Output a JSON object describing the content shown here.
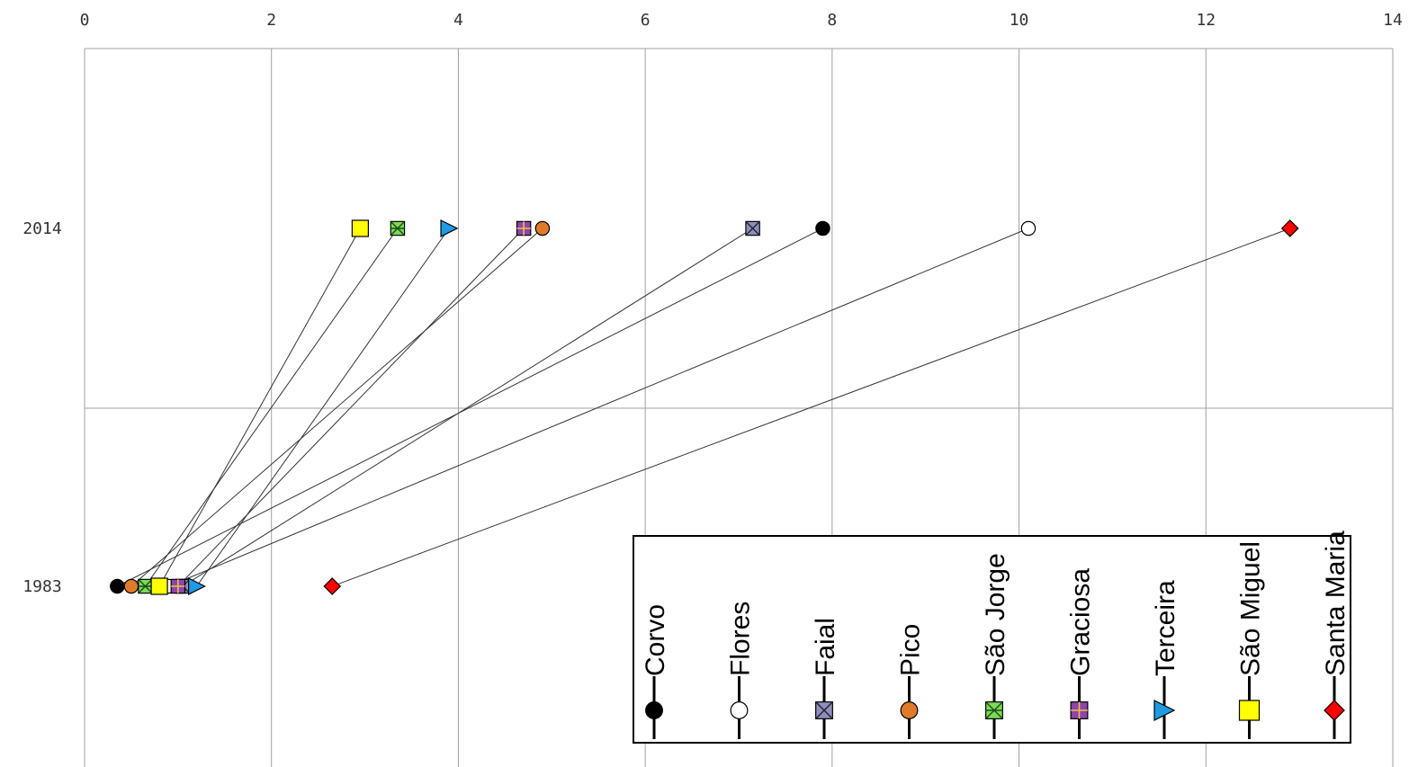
{
  "chart_data": {
    "type": "line",
    "x_ticks": [
      0,
      2,
      4,
      6,
      8,
      10,
      12,
      14
    ],
    "xlim": [
      0,
      14
    ],
    "categories": [
      "2014",
      "1983"
    ],
    "grid": true,
    "legend_placement": "bottom-right",
    "series": [
      {
        "name": "Corvo",
        "marker": "circle",
        "fill": "#000000",
        "values": {
          "1983": 0.35,
          "2014": 7.9
        }
      },
      {
        "name": "Flores",
        "marker": "circle",
        "fill": "#ffffff",
        "values": {
          "1983": 0.9,
          "2014": 10.1
        }
      },
      {
        "name": "Faial",
        "marker": "square-x",
        "fill": "#8e8ec0",
        "values": {
          "1983": 1.05,
          "2014": 7.15
        }
      },
      {
        "name": "Pico",
        "marker": "circle",
        "fill": "#e07a2a",
        "values": {
          "1983": 0.5,
          "2014": 4.9
        }
      },
      {
        "name": "São Jorge",
        "marker": "square-asterisk",
        "fill": "#7ed957",
        "values": {
          "1983": 0.65,
          "2014": 3.35
        }
      },
      {
        "name": "Graciosa",
        "marker": "square-plus",
        "fill": "#8e44ad",
        "values": {
          "1983": 1.0,
          "2014": 4.7
        }
      },
      {
        "name": "Terceira",
        "marker": "triangle",
        "fill": "#1e9be3",
        "values": {
          "1983": 1.2,
          "2014": 3.9
        }
      },
      {
        "name": "São Miguel",
        "marker": "square",
        "fill": "#ffff00",
        "values": {
          "1983": 0.8,
          "2014": 2.95
        }
      },
      {
        "name": "Santa Maria",
        "marker": "diamond",
        "fill": "#ff0000",
        "values": {
          "1983": 2.65,
          "2014": 12.9
        }
      }
    ]
  }
}
